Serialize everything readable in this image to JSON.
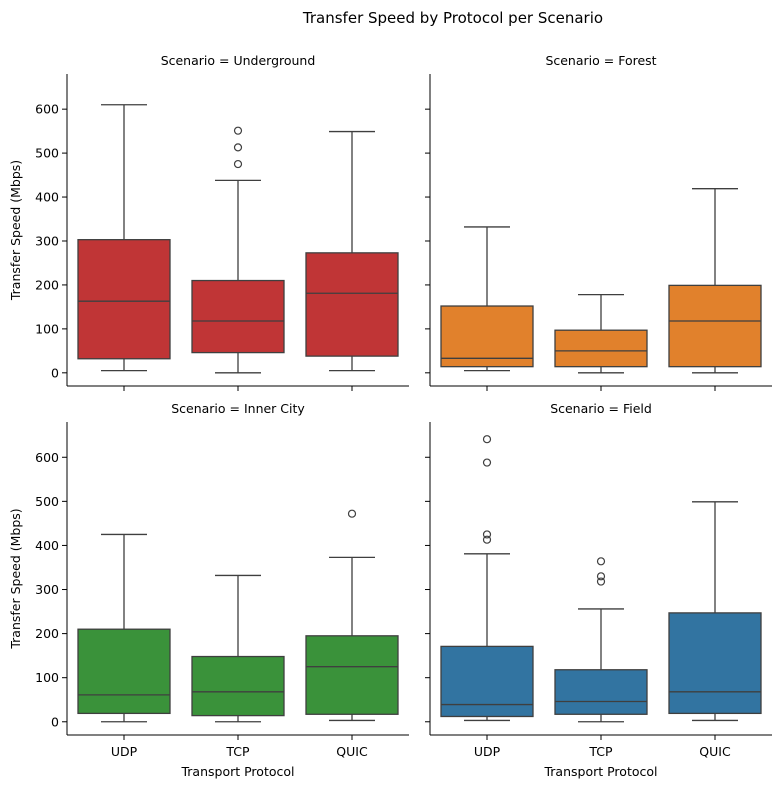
{
  "chart_data": {
    "type": "box",
    "title": "Transfer Speed by Protocol per Scenario",
    "xlabel": "Transport Protocol",
    "ylabel": "Transfer Speed (Mbps)",
    "categories": [
      "UDP",
      "TCP",
      "QUIC"
    ],
    "ylim": [
      -30,
      680
    ],
    "yticks": [
      0,
      100,
      200,
      300,
      400,
      500,
      600
    ],
    "panels": [
      {
        "title": "Scenario = Underground",
        "color": "#c03536",
        "boxes": [
          {
            "category": "UDP",
            "whisker_low": 5,
            "q1": 32,
            "median": 163,
            "q3": 303,
            "whisker_high": 610,
            "outliers": []
          },
          {
            "category": "TCP",
            "whisker_low": 0,
            "q1": 46,
            "median": 118,
            "q3": 210,
            "whisker_high": 438,
            "outliers": [
              475,
              513,
              551
            ]
          },
          {
            "category": "QUIC",
            "whisker_low": 5,
            "q1": 38,
            "median": 181,
            "q3": 273,
            "whisker_high": 549,
            "outliers": []
          }
        ]
      },
      {
        "title": "Scenario = Forest",
        "color": "#e1812c",
        "boxes": [
          {
            "category": "UDP",
            "whisker_low": 5,
            "q1": 14,
            "median": 33,
            "q3": 152,
            "whisker_high": 332,
            "outliers": []
          },
          {
            "category": "TCP",
            "whisker_low": 0,
            "q1": 14,
            "median": 50,
            "q3": 97,
            "whisker_high": 178,
            "outliers": []
          },
          {
            "category": "QUIC",
            "whisker_low": 0,
            "q1": 14,
            "median": 118,
            "q3": 199,
            "whisker_high": 419,
            "outliers": []
          }
        ]
      },
      {
        "title": "Scenario = Inner City",
        "color": "#3a923a",
        "boxes": [
          {
            "category": "UDP",
            "whisker_low": 0,
            "q1": 19,
            "median": 61,
            "q3": 210,
            "whisker_high": 425,
            "outliers": []
          },
          {
            "category": "TCP",
            "whisker_low": 0,
            "q1": 14,
            "median": 68,
            "q3": 148,
            "whisker_high": 332,
            "outliers": []
          },
          {
            "category": "QUIC",
            "whisker_low": 3,
            "q1": 17,
            "median": 125,
            "q3": 195,
            "whisker_high": 373,
            "outliers": [
              472
            ]
          }
        ]
      },
      {
        "title": "Scenario = Field",
        "color": "#3274a1",
        "boxes": [
          {
            "category": "UDP",
            "whisker_low": 3,
            "q1": 12,
            "median": 39,
            "q3": 171,
            "whisker_high": 381,
            "outliers": [
              413,
              425,
              588,
              641
            ]
          },
          {
            "category": "TCP",
            "whisker_low": 0,
            "q1": 17,
            "median": 46,
            "q3": 118,
            "whisker_high": 256,
            "outliers": [
              318,
              330,
              364
            ]
          },
          {
            "category": "QUIC",
            "whisker_low": 3,
            "q1": 19,
            "median": 68,
            "q3": 247,
            "whisker_high": 499,
            "outliers": []
          }
        ]
      }
    ]
  }
}
